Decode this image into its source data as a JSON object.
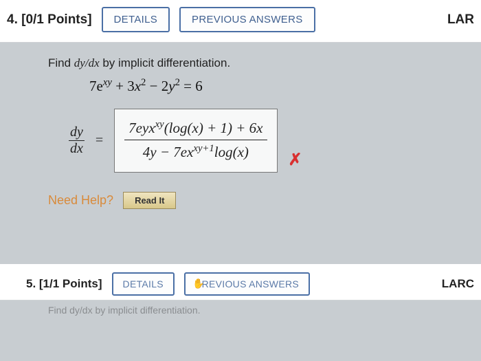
{
  "q4": {
    "label": "4.  [0/1 Points]",
    "details": "DETAILS",
    "prev": "PREVIOUS ANSWERS",
    "right": "LAR"
  },
  "prompt": "Find dy/dx by implicit differentiation.",
  "equation_html": "7e<span class='sup italic'>xy</span> + 3<span class='italic'>x</span><span class='sup'>2</span> − 2<span class='italic'>y</span><span class='sup'>2</span> = 6",
  "frac_left_top": "dy",
  "frac_left_bot": "dx",
  "answer_top_html": "7<span class='italic'>eyx</span><span class='sup italic'>xy</span>(log(<span class='italic'>x</span>) + 1) + 6<span class='italic'>x</span>",
  "answer_bot_html": "4<span class='italic'>y</span> − 7<span class='italic'>ex</span><span class='sup italic'>xy</span><span class='sup'>+1</span>log(<span class='italic'>x</span>)",
  "need_help": "Need Help?",
  "read_it": "Read It",
  "q5": {
    "label": "5.  [1/1 Points]",
    "details": "DETAILS",
    "prev": "PREVIOUS ANSWERS",
    "right": "LARC"
  },
  "footer": "Find dy/dx by implicit differentiation.",
  "colors": {
    "outline_border": "#4a6fa5",
    "need_help": "#d98a3a",
    "wrong": "#d93030",
    "bg": "#c8cdd1"
  }
}
